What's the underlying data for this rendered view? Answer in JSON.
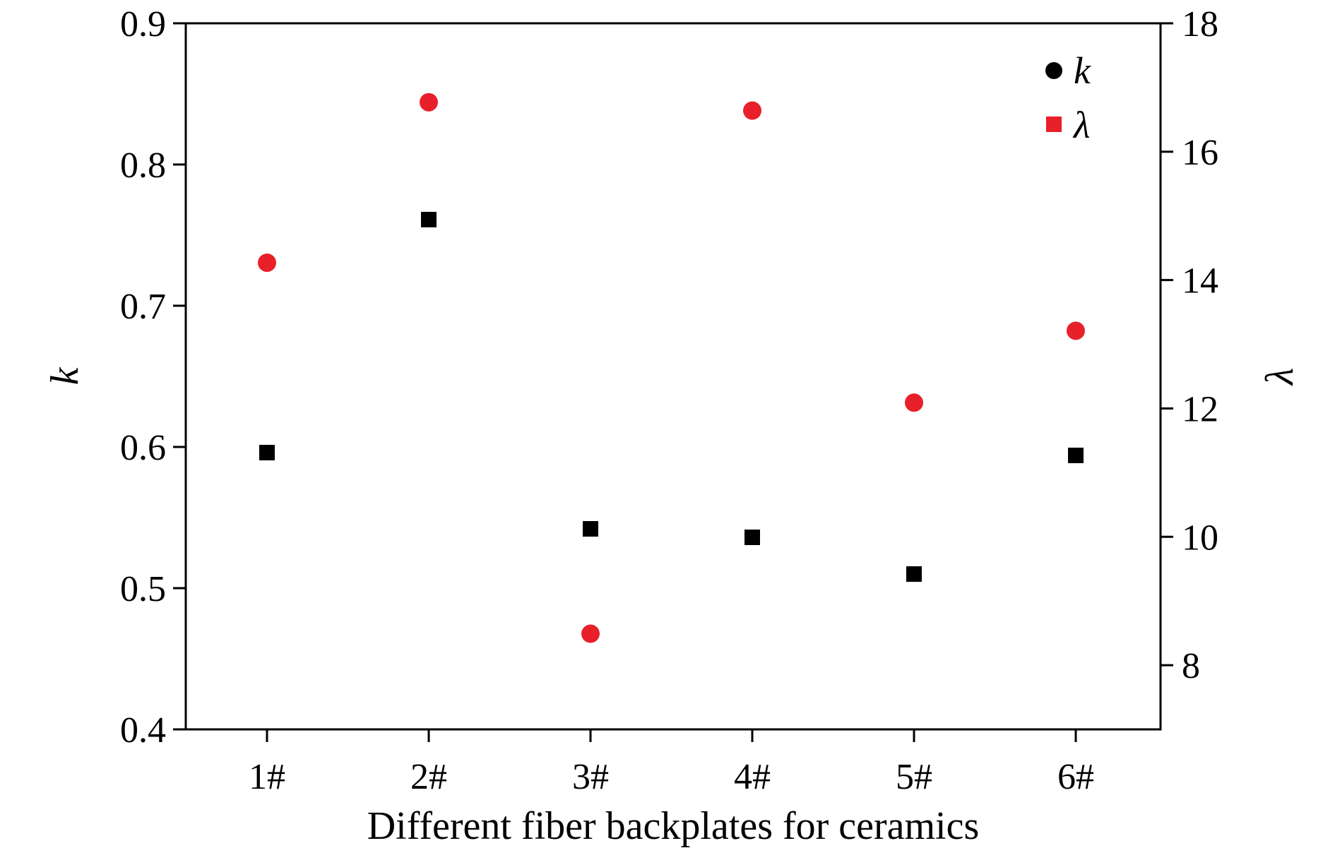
{
  "chart_data": {
    "type": "scatter",
    "xlabel": "Different fiber backplates for ceramics",
    "categories": [
      "1#",
      "2#",
      "3#",
      "4#",
      "5#",
      "6#"
    ],
    "y_left": {
      "label": "k",
      "ylim": [
        0.4,
        0.9
      ],
      "ticks": [
        "0.4",
        "0.5",
        "0.6",
        "0.7",
        "0.8",
        "0.9"
      ]
    },
    "y_right": {
      "label": "λ",
      "ylim": [
        7,
        18
      ],
      "ticks": [
        "8",
        "10",
        "12",
        "14",
        "16",
        "18"
      ]
    },
    "series": [
      {
        "name": "k",
        "axis": "left",
        "marker": "square",
        "color": "#000000",
        "legend_marker": "circle",
        "values": [
          0.596,
          0.761,
          0.542,
          0.536,
          0.51,
          0.594
        ]
      },
      {
        "name": "λ",
        "axis": "right",
        "marker": "circle",
        "color": "#e8202a",
        "legend_marker": "square",
        "values": [
          14.27,
          16.77,
          8.49,
          16.64,
          12.09,
          13.21
        ]
      }
    ],
    "legend_position": "top-right",
    "grid": false
  }
}
